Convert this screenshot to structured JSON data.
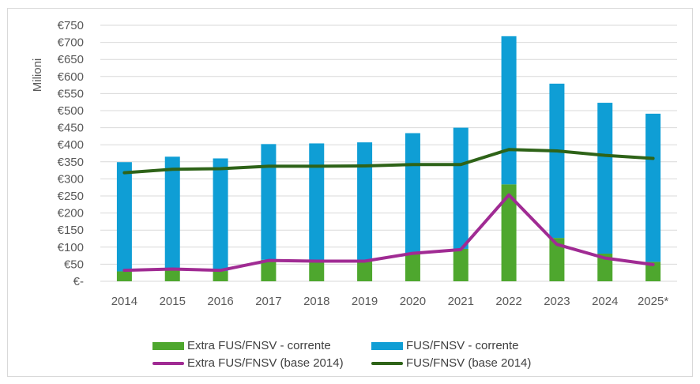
{
  "chart_data": {
    "type": "bar",
    "stacked": true,
    "ylabel": "Milioni",
    "xlabel": "",
    "ylim": [
      0,
      750
    ],
    "ytick_step": 50,
    "ytick_labels": [
      "€-",
      "€50",
      "€100",
      "€150",
      "€200",
      "€250",
      "€300",
      "€350",
      "€400",
      "€450",
      "€500",
      "€550",
      "€600",
      "€650",
      "€700",
      "€750"
    ],
    "grid": true,
    "legend_position": "bottom",
    "categories": [
      "2014",
      "2015",
      "2016",
      "2017",
      "2018",
      "2019",
      "2020",
      "2021",
      "2022",
      "2023",
      "2024",
      "2025*"
    ],
    "series": [
      {
        "name": "Extra FUS/FNSV - corrente",
        "type": "bar",
        "color": "#4ea72e",
        "values": [
          29,
          37,
          30,
          63,
          60,
          60,
          80,
          95,
          284,
          127,
          81,
          57
        ]
      },
      {
        "name": "FUS/FNSV - corrente",
        "type": "bar",
        "color": "#0f9ed5",
        "values": [
          320,
          328,
          330,
          339,
          344,
          347,
          354,
          355,
          434,
          452,
          442,
          434
        ]
      },
      {
        "name": "Extra FUS/FNSV (base 2014)",
        "type": "line",
        "color": "#a02b93",
        "values": [
          32,
          36,
          32,
          61,
          59,
          59,
          82,
          93,
          253,
          108,
          68,
          49
        ]
      },
      {
        "name": "FUS/FNSV (base 2014)",
        "type": "line",
        "color": "#2e6318",
        "values": [
          318,
          328,
          330,
          337,
          337,
          338,
          342,
          342,
          386,
          382,
          369,
          360
        ]
      }
    ]
  }
}
